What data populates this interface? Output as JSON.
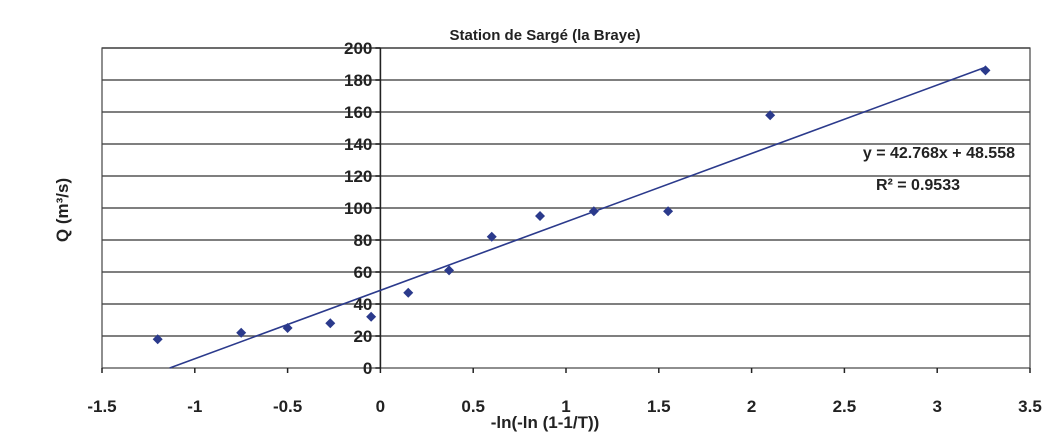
{
  "chart_data": {
    "type": "scatter",
    "title": "Station de Sargé (la Braye)",
    "xlabel": "-ln(-ln (1-1/T))",
    "ylabel": "Q (m³/s)",
    "xlim": [
      -1.5,
      3.5
    ],
    "ylim": [
      0,
      200
    ],
    "x_ticks": [
      "-1.5",
      "-1",
      "-0.5",
      "0",
      "0.5",
      "1",
      "1.5",
      "2",
      "2.5",
      "3",
      "3.5"
    ],
    "y_ticks": [
      "0",
      "20",
      "40",
      "60",
      "80",
      "100",
      "120",
      "140",
      "160",
      "180",
      "200"
    ],
    "grid": "horizontal",
    "series": [
      {
        "points": [
          {
            "x": -1.2,
            "y": 18
          },
          {
            "x": -0.75,
            "y": 22
          },
          {
            "x": -0.5,
            "y": 25
          },
          {
            "x": -0.27,
            "y": 28
          },
          {
            "x": -0.05,
            "y": 32
          },
          {
            "x": 0.15,
            "y": 47
          },
          {
            "x": 0.37,
            "y": 61
          },
          {
            "x": 0.6,
            "y": 82
          },
          {
            "x": 0.86,
            "y": 95
          },
          {
            "x": 1.15,
            "y": 98
          },
          {
            "x": 1.55,
            "y": 98
          },
          {
            "x": 2.1,
            "y": 158
          },
          {
            "x": 3.26,
            "y": 186
          }
        ],
        "color": "#2b3a8c"
      }
    ],
    "trendline": {
      "slope": 42.768,
      "intercept": 48.558,
      "color": "#2b3a8c",
      "equation": "y = 42.768x + 48.558",
      "r2": "R² = 0.9533"
    }
  }
}
